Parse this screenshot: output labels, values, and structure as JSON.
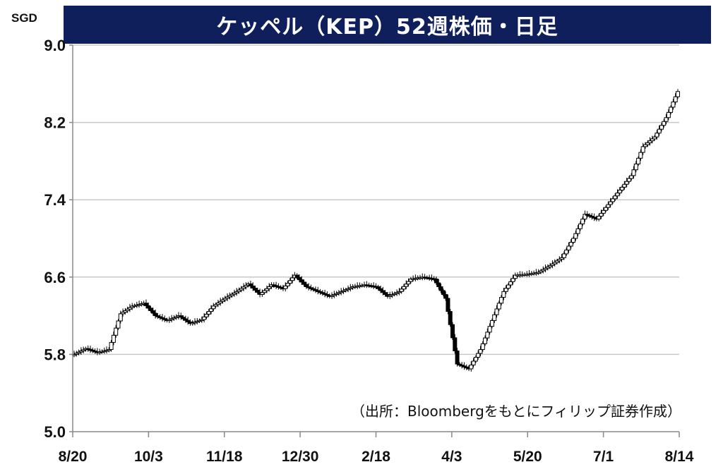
{
  "title": "ケッペル（KEP）52週株価・日足",
  "unit_label": "SGD",
  "source_note": "（出所：Bloombergをもとにフィリップ証券作成）",
  "chart_data": {
    "type": "candlestick",
    "title": "ケッペル（KEP）52週株価・日足",
    "ylabel": "SGD",
    "ylim": [
      5.0,
      9.0
    ],
    "yticks": [
      "5.0",
      "5.8",
      "6.6",
      "7.4",
      "8.2",
      "9.0"
    ],
    "xticks": [
      "8/20",
      "10/3",
      "11/18",
      "12/30",
      "2/18",
      "4/3",
      "5/20",
      "7/1",
      "8/14"
    ],
    "grid": true,
    "series": [
      {
        "x": [
          "8/20",
          "8/27",
          "9/3",
          "9/10",
          "9/17",
          "9/24",
          "10/3",
          "10/10",
          "10/17",
          "10/24",
          "10/31",
          "11/7",
          "11/14",
          "11/18",
          "11/25",
          "12/2",
          "12/9",
          "12/16",
          "12/23",
          "12/30",
          "1/6",
          "1/13",
          "1/20",
          "1/27",
          "2/3",
          "2/10",
          "2/18",
          "2/25",
          "3/3",
          "3/10",
          "3/17",
          "3/24",
          "3/31",
          "4/3",
          "4/10",
          "4/17",
          "4/24",
          "5/1",
          "5/8",
          "5/15",
          "5/20",
          "5/27",
          "6/3",
          "6/10",
          "6/17",
          "6/24",
          "7/1",
          "7/8",
          "7/15",
          "7/22",
          "7/29",
          "8/5",
          "8/14"
        ],
        "values": [
          5.8,
          5.86,
          5.82,
          5.85,
          6.22,
          6.3,
          6.33,
          6.2,
          6.15,
          6.2,
          6.12,
          6.16,
          6.3,
          6.38,
          6.45,
          6.53,
          6.42,
          6.52,
          6.48,
          6.62,
          6.5,
          6.45,
          6.4,
          6.45,
          6.5,
          6.52,
          6.5,
          6.4,
          6.45,
          6.58,
          6.6,
          6.58,
          6.38,
          5.7,
          5.65,
          5.85,
          6.15,
          6.45,
          6.62,
          6.63,
          6.65,
          6.72,
          6.8,
          7.0,
          7.25,
          7.2,
          7.35,
          7.5,
          7.65,
          7.95,
          8.05,
          8.25,
          8.52
        ]
      }
    ]
  }
}
